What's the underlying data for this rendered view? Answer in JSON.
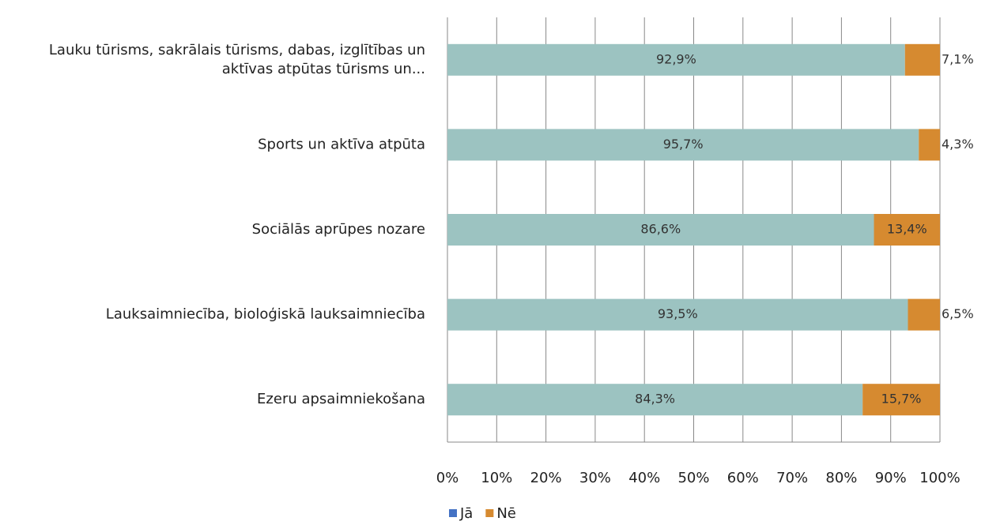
{
  "chart_data": {
    "type": "stacked_barh",
    "categories": [
      "Lauku tūrisms, sakrālais tūrisms, dabas, izglītības un aktīvas atpūtas tūrisms un...",
      "Sports un aktīva atpūta",
      "Sociālās aprūpes nozare",
      "Lauksaimniecība, bioloģiskā lauksaimniecība",
      "Ezeru apsaimniekošana"
    ],
    "series": [
      {
        "name": "Jā",
        "color": "#9cc3c1",
        "legend_color": "#4472c4",
        "values": [
          92.9,
          95.7,
          86.6,
          93.5,
          84.3
        ],
        "value_labels": [
          "92,9%",
          "95,7%",
          "86,6%",
          "93,5%",
          "84,3%"
        ]
      },
      {
        "name": "Nē",
        "color": "#d68a30",
        "legend_color": "#d68a30",
        "values": [
          7.1,
          4.3,
          13.4,
          6.5,
          15.7
        ],
        "value_labels": [
          "7,1%",
          "4,3%",
          "13,4%",
          "6,5%",
          "15,7%"
        ]
      }
    ],
    "xlim": [
      0,
      100
    ],
    "xticks": [
      {
        "value": 0,
        "label": "0%"
      },
      {
        "value": 10,
        "label": "10%"
      },
      {
        "value": 20,
        "label": "20%"
      },
      {
        "value": 30,
        "label": "30%"
      },
      {
        "value": 40,
        "label": "40%"
      },
      {
        "value": 50,
        "label": "50%"
      },
      {
        "value": 60,
        "label": "60%"
      },
      {
        "value": 70,
        "label": "70%"
      },
      {
        "value": 80,
        "label": "80%"
      },
      {
        "value": 90,
        "label": "90%"
      },
      {
        "value": 100,
        "label": "100%"
      }
    ],
    "grid": true,
    "legend": "bottom"
  }
}
